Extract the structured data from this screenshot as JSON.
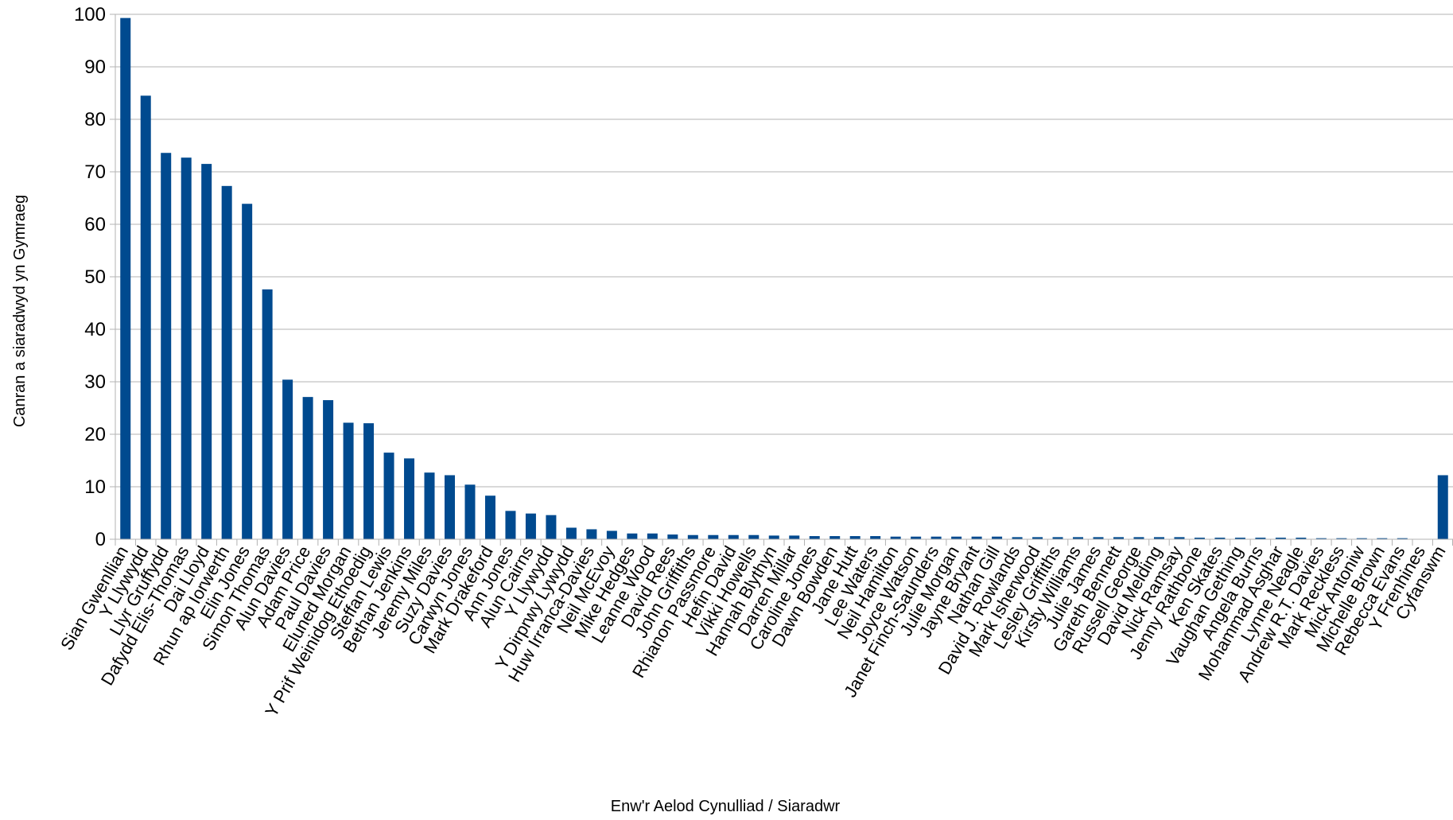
{
  "chart_data": {
    "type": "bar",
    "xlabel": "Enw'r Aelod Cynulliad / Siaradwr",
    "ylabel": "Canran a siaradwyd yn Gymraeg",
    "ylim": [
      0,
      100
    ],
    "yticks": [
      0,
      10,
      20,
      30,
      40,
      50,
      60,
      70,
      80,
      90,
      100
    ],
    "grid": true,
    "bar_color": "#004a8f",
    "grid_color": "#b3b3b3",
    "axis_color": "#b3b3b3",
    "categories": [
      "Sian Gwenllian",
      "Y Llywydd",
      "Llyr Gruffydd",
      "Dafydd Elis-Thomas",
      "Dai Lloyd",
      "Rhun ap Iorwerth",
      "Elin Jones",
      "Simon Thomas",
      "Alun Davies",
      "Adam Price",
      "Paul Davies",
      "Eluned Morgan",
      "Y Prif Weinidog Ethoedig",
      "Steffan Lewis",
      "Bethan Jenkins",
      "Jeremy Miles",
      "Suzy Davies",
      "Carwyn Jones",
      "Mark Drakeford",
      "Ann Jones",
      "Alun Cairns",
      "Y Llywydd",
      "Y Dirprwy Lywydd",
      "Huw Irranca-Davies",
      "Neil McEvoy",
      "Mike Hedges",
      "Leanne Wood",
      "David Rees",
      "John Griffiths",
      "Rhianon Passmore",
      "Hefin David",
      "Vikki Howells",
      "Hannah Blythyn",
      "Darren Millar",
      "Caroline Jones",
      "Dawn Bowden",
      "Jane Hutt",
      "Lee Waters",
      "Neil Hamilton",
      "Joyce Watson",
      "Janet Finch-Saunders",
      "Julie Morgan",
      "Jayne Bryant",
      "Nathan Gill",
      "David J. Rowlands",
      "Mark Isherwood",
      "Lesley Griffiths",
      "Kirsty Williams",
      "Julie James",
      "Gareth Bennett",
      "Russell George",
      "David Melding",
      "Nick Ramsay",
      "Jenny Rathbone",
      "Ken Skates",
      "Vaughan Gething",
      "Angela Burns",
      "Mohammad Asghar",
      "Lynne Neagle",
      "Andrew R.T. Davies",
      "Mark Reckless",
      "Mick Antoniw",
      "Michelle Brown",
      "Rebecca Evans",
      "Y Frenhines",
      "Cyfanswm"
    ],
    "values": [
      99.3,
      84.5,
      73.6,
      72.7,
      71.5,
      67.3,
      63.9,
      47.6,
      30.4,
      27.1,
      26.5,
      22.2,
      22.1,
      16.5,
      15.4,
      12.7,
      12.2,
      10.4,
      8.3,
      5.4,
      4.9,
      4.6,
      2.2,
      1.9,
      1.6,
      1.1,
      1.1,
      0.9,
      0.8,
      0.8,
      0.8,
      0.8,
      0.7,
      0.7,
      0.6,
      0.6,
      0.6,
      0.6,
      0.5,
      0.5,
      0.5,
      0.5,
      0.5,
      0.5,
      0.4,
      0.4,
      0.4,
      0.4,
      0.4,
      0.4,
      0.4,
      0.4,
      0.4,
      0.3,
      0.3,
      0.3,
      0.3,
      0.3,
      0.3,
      0.2,
      0.2,
      0.2,
      0.2,
      0.2,
      0,
      12.2
    ]
  }
}
